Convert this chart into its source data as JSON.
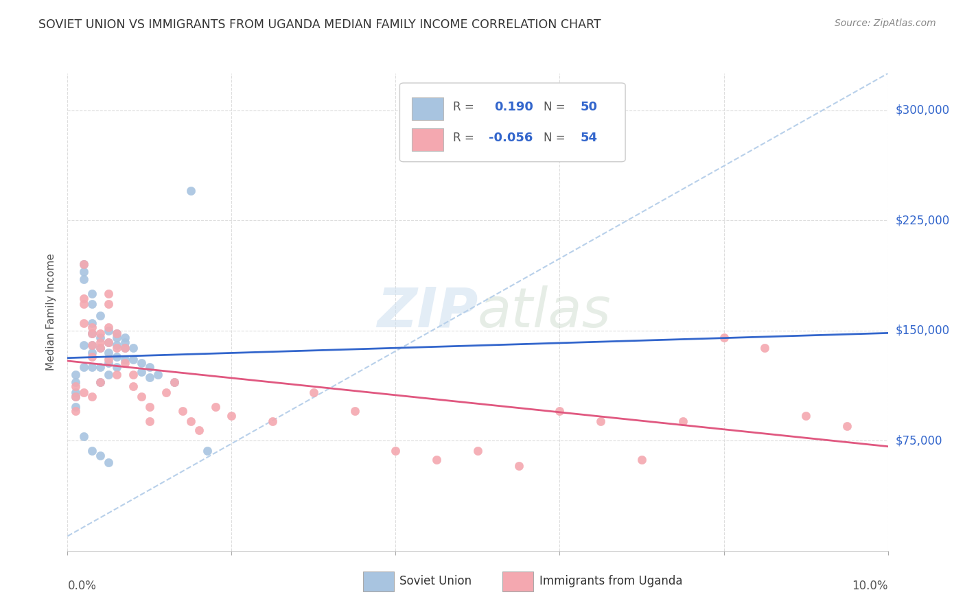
{
  "title": "SOVIET UNION VS IMMIGRANTS FROM UGANDA MEDIAN FAMILY INCOME CORRELATION CHART",
  "source": "Source: ZipAtlas.com",
  "ylabel": "Median Family Income",
  "ytick_labels": [
    "$75,000",
    "$150,000",
    "$225,000",
    "$300,000"
  ],
  "ytick_values": [
    75000,
    150000,
    225000,
    300000
  ],
  "xlim": [
    0.0,
    0.1
  ],
  "ylim": [
    0,
    325000
  ],
  "legend1_r": "0.190",
  "legend1_n": "50",
  "legend2_r": "-0.056",
  "legend2_n": "54",
  "color_soviet": "#a8c4e0",
  "color_soviet_line": "#3366cc",
  "color_uganda": "#f4a8b0",
  "color_uganda_line": "#e05880",
  "color_trendline_dashed": "#b8d0ea",
  "watermark_zip": "ZIP",
  "watermark_atlas": "atlas",
  "soviet_x": [
    0.001,
    0.001,
    0.001,
    0.001,
    0.001,
    0.002,
    0.002,
    0.002,
    0.002,
    0.002,
    0.003,
    0.003,
    0.003,
    0.003,
    0.003,
    0.003,
    0.003,
    0.004,
    0.004,
    0.004,
    0.004,
    0.004,
    0.005,
    0.005,
    0.005,
    0.005,
    0.005,
    0.006,
    0.006,
    0.006,
    0.006,
    0.007,
    0.007,
    0.007,
    0.008,
    0.008,
    0.009,
    0.009,
    0.01,
    0.01,
    0.011,
    0.013,
    0.015,
    0.017,
    0.002,
    0.003,
    0.004,
    0.005,
    0.006,
    0.007
  ],
  "soviet_y": [
    108000,
    115000,
    120000,
    105000,
    98000,
    190000,
    195000,
    185000,
    140000,
    125000,
    175000,
    168000,
    155000,
    148000,
    140000,
    135000,
    125000,
    160000,
    145000,
    138000,
    125000,
    115000,
    150000,
    142000,
    135000,
    128000,
    120000,
    148000,
    140000,
    132000,
    125000,
    142000,
    138000,
    130000,
    138000,
    130000,
    128000,
    122000,
    125000,
    118000,
    120000,
    115000,
    245000,
    68000,
    78000,
    68000,
    65000,
    60000,
    145000,
    145000
  ],
  "uganda_x": [
    0.001,
    0.001,
    0.001,
    0.002,
    0.002,
    0.002,
    0.002,
    0.002,
    0.003,
    0.003,
    0.003,
    0.003,
    0.003,
    0.004,
    0.004,
    0.004,
    0.004,
    0.005,
    0.005,
    0.005,
    0.005,
    0.005,
    0.006,
    0.006,
    0.006,
    0.007,
    0.007,
    0.008,
    0.008,
    0.009,
    0.01,
    0.01,
    0.012,
    0.013,
    0.014,
    0.015,
    0.016,
    0.018,
    0.02,
    0.025,
    0.03,
    0.035,
    0.04,
    0.045,
    0.05,
    0.055,
    0.06,
    0.065,
    0.07,
    0.075,
    0.08,
    0.085,
    0.09,
    0.095
  ],
  "uganda_y": [
    112000,
    105000,
    95000,
    195000,
    172000,
    168000,
    155000,
    108000,
    152000,
    148000,
    140000,
    132000,
    105000,
    148000,
    142000,
    138000,
    115000,
    175000,
    168000,
    152000,
    142000,
    130000,
    148000,
    138000,
    120000,
    138000,
    128000,
    120000,
    112000,
    105000,
    98000,
    88000,
    108000,
    115000,
    95000,
    88000,
    82000,
    98000,
    92000,
    88000,
    108000,
    95000,
    68000,
    62000,
    68000,
    58000,
    95000,
    88000,
    62000,
    88000,
    145000,
    138000,
    92000,
    85000
  ]
}
